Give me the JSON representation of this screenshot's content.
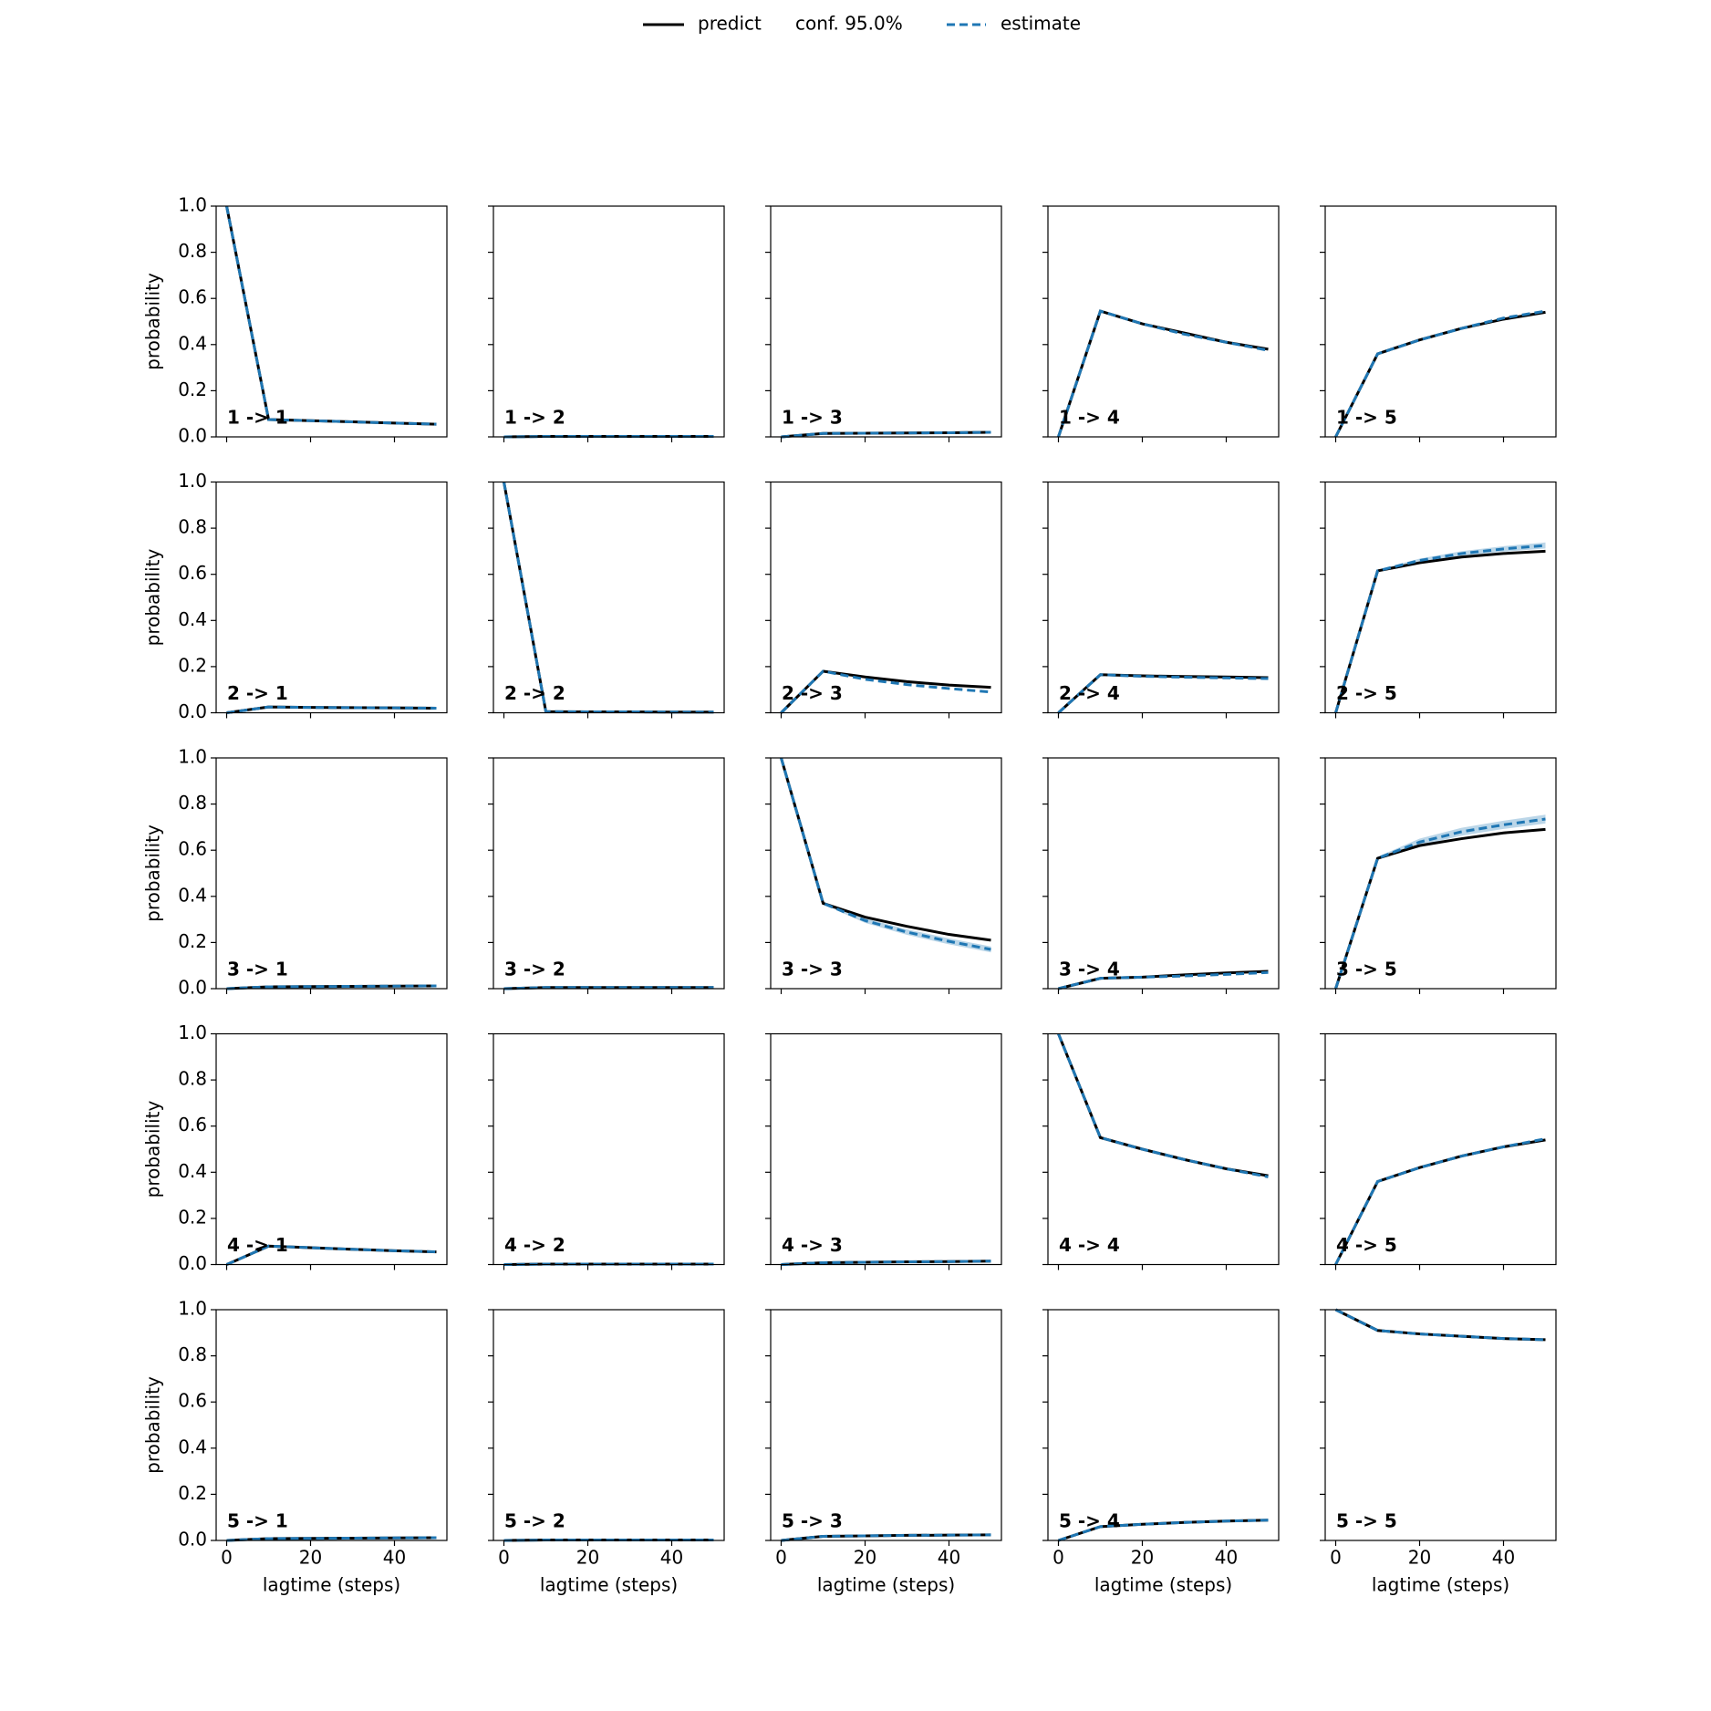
{
  "chart_data": {
    "type": "line",
    "legend": [
      {
        "name": "predict",
        "color": "#000000"
      },
      {
        "name": "conf. 95.0%"
      },
      {
        "name": "estimate",
        "color": "#1f77b4"
      }
    ],
    "xlabel": "lagtime (steps)",
    "ylabel": "probability",
    "x": [
      0,
      10,
      20,
      30,
      40,
      50
    ],
    "xlim": [
      -2.5,
      52.5
    ],
    "ylim": [
      0,
      1
    ],
    "xticks": [
      0,
      20,
      40
    ],
    "yticks": [
      {
        "value": 0,
        "label": "0.0"
      },
      0.2,
      0.4,
      0.6,
      0.8,
      {
        "value": 1,
        "label": "1.0"
      }
    ],
    "panels": [
      {
        "label": "1 -> 1",
        "series": [
          {
            "name": "predict",
            "values": [
              1,
              0.075,
              0.07,
              0.065,
              0.06,
              0.055
            ]
          },
          {
            "name": "estimate",
            "values": [
              1,
              0.075,
              0.07,
              0.065,
              0.06,
              0.055
            ]
          }
        ]
      },
      {
        "label": "1 -> 2",
        "series": [
          {
            "name": "predict",
            "values": [
              0,
              0.002,
              0.002,
              0.002,
              0.002,
              0.002
            ]
          },
          {
            "name": "estimate",
            "values": [
              0,
              0.002,
              0.002,
              0.002,
              0.002,
              0.002
            ]
          }
        ]
      },
      {
        "label": "1 -> 3",
        "series": [
          {
            "name": "predict",
            "values": [
              0,
              0.015,
              0.016,
              0.017,
              0.018,
              0.02
            ]
          },
          {
            "name": "estimate",
            "values": [
              0,
              0.015,
              0.016,
              0.017,
              0.018,
              0.02
            ]
          }
        ]
      },
      {
        "label": "1 -> 4",
        "series": [
          {
            "name": "predict",
            "values": [
              0,
              0.545,
              0.49,
              0.45,
              0.41,
              0.38
            ]
          },
          {
            "name": "estimate",
            "values": [
              0,
              0.545,
              0.49,
              0.445,
              0.41,
              0.375
            ]
          }
        ]
      },
      {
        "label": "1 -> 5",
        "series": [
          {
            "name": "predict",
            "values": [
              0,
              0.36,
              0.42,
              0.47,
              0.51,
              0.54
            ]
          },
          {
            "name": "estimate",
            "values": [
              0,
              0.36,
              0.42,
              0.47,
              0.515,
              0.545
            ]
          }
        ]
      },
      {
        "label": "2 -> 1",
        "series": [
          {
            "name": "predict",
            "values": [
              0,
              0.025,
              0.023,
              0.022,
              0.021,
              0.02
            ]
          },
          {
            "name": "estimate",
            "values": [
              0,
              0.025,
              0.023,
              0.022,
              0.021,
              0.02
            ]
          }
        ]
      },
      {
        "label": "2 -> 2",
        "series": [
          {
            "name": "predict",
            "values": [
              1,
              0.005,
              0.004,
              0.004,
              0.003,
              0.003
            ]
          },
          {
            "name": "estimate",
            "values": [
              1,
              0.005,
              0.004,
              0.004,
              0.003,
              0.003
            ]
          }
        ]
      },
      {
        "label": "2 -> 3",
        "series": [
          {
            "name": "predict",
            "values": [
              0,
              0.18,
              0.155,
              0.135,
              0.12,
              0.11
            ]
          },
          {
            "name": "estimate",
            "values": [
              0,
              0.18,
              0.145,
              0.122,
              0.105,
              0.09
            ]
          }
        ]
      },
      {
        "label": "2 -> 4",
        "series": [
          {
            "name": "predict",
            "values": [
              0,
              0.165,
              0.16,
              0.157,
              0.155,
              0.152
            ]
          },
          {
            "name": "estimate",
            "values": [
              0,
              0.165,
              0.158,
              0.154,
              0.151,
              0.148
            ]
          }
        ]
      },
      {
        "label": "2 -> 5",
        "series": [
          {
            "name": "predict",
            "values": [
              0,
              0.615,
              0.65,
              0.675,
              0.69,
              0.7
            ]
          },
          {
            "name": "estimate",
            "values": [
              0,
              0.615,
              0.66,
              0.69,
              0.71,
              0.725
            ]
          }
        ],
        "conf_lower": [
          0,
          0.61,
          0.652,
          0.68,
          0.698,
          0.712
        ],
        "conf_upper": [
          0,
          0.62,
          0.668,
          0.7,
          0.722,
          0.738
        ]
      },
      {
        "label": "3 -> 1",
        "series": [
          {
            "name": "predict",
            "values": [
              0,
              0.008,
              0.009,
              0.01,
              0.011,
              0.012
            ]
          },
          {
            "name": "estimate",
            "values": [
              0,
              0.008,
              0.009,
              0.01,
              0.011,
              0.012
            ]
          }
        ]
      },
      {
        "label": "3 -> 2",
        "series": [
          {
            "name": "predict",
            "values": [
              0,
              0.005,
              0.005,
              0.005,
              0.005,
              0.005
            ]
          },
          {
            "name": "estimate",
            "values": [
              0,
              0.005,
              0.005,
              0.005,
              0.005,
              0.005
            ]
          }
        ]
      },
      {
        "label": "3 -> 3",
        "series": [
          {
            "name": "predict",
            "values": [
              1,
              0.37,
              0.31,
              0.27,
              0.235,
              0.21
            ]
          },
          {
            "name": "estimate",
            "values": [
              1,
              0.37,
              0.295,
              0.245,
              0.205,
              0.17
            ]
          }
        ],
        "conf_lower": [
          1,
          0.365,
          0.285,
          0.233,
          0.192,
          0.157
        ],
        "conf_upper": [
          1,
          0.375,
          0.305,
          0.257,
          0.218,
          0.183
        ]
      },
      {
        "label": "3 -> 4",
        "series": [
          {
            "name": "predict",
            "values": [
              0,
              0.045,
              0.05,
              0.06,
              0.068,
              0.075
            ]
          },
          {
            "name": "estimate",
            "values": [
              0,
              0.045,
              0.05,
              0.055,
              0.062,
              0.07
            ]
          }
        ]
      },
      {
        "label": "3 -> 5",
        "series": [
          {
            "name": "predict",
            "values": [
              0,
              0.565,
              0.62,
              0.65,
              0.675,
              0.69
            ]
          },
          {
            "name": "estimate",
            "values": [
              0,
              0.565,
              0.635,
              0.68,
              0.71,
              0.735
            ]
          }
        ],
        "conf_lower": [
          0,
          0.558,
          0.62,
          0.663,
          0.692,
          0.716
        ],
        "conf_upper": [
          0,
          0.572,
          0.65,
          0.697,
          0.728,
          0.754
        ]
      },
      {
        "label": "4 -> 1",
        "series": [
          {
            "name": "predict",
            "values": [
              0,
              0.08,
              0.073,
              0.066,
              0.06,
              0.055
            ]
          },
          {
            "name": "estimate",
            "values": [
              0,
              0.08,
              0.073,
              0.066,
              0.06,
              0.055
            ]
          }
        ]
      },
      {
        "label": "4 -> 2",
        "series": [
          {
            "name": "predict",
            "values": [
              0,
              0.002,
              0.002,
              0.002,
              0.002,
              0.002
            ]
          },
          {
            "name": "estimate",
            "values": [
              0,
              0.002,
              0.002,
              0.002,
              0.002,
              0.002
            ]
          }
        ]
      },
      {
        "label": "4 -> 3",
        "series": [
          {
            "name": "predict",
            "values": [
              0,
              0.008,
              0.01,
              0.012,
              0.013,
              0.015
            ]
          },
          {
            "name": "estimate",
            "values": [
              0,
              0.008,
              0.01,
              0.012,
              0.013,
              0.015
            ]
          }
        ]
      },
      {
        "label": "4 -> 4",
        "series": [
          {
            "name": "predict",
            "values": [
              1,
              0.55,
              0.5,
              0.455,
              0.415,
              0.385
            ]
          },
          {
            "name": "estimate",
            "values": [
              1,
              0.55,
              0.5,
              0.455,
              0.415,
              0.38
            ]
          }
        ]
      },
      {
        "label": "4 -> 5",
        "series": [
          {
            "name": "predict",
            "values": [
              0,
              0.36,
              0.42,
              0.47,
              0.51,
              0.54
            ]
          },
          {
            "name": "estimate",
            "values": [
              0,
              0.36,
              0.42,
              0.47,
              0.51,
              0.545
            ]
          }
        ]
      },
      {
        "label": "5 -> 1",
        "series": [
          {
            "name": "predict",
            "values": [
              0,
              0.008,
              0.009,
              0.01,
              0.011,
              0.012
            ]
          },
          {
            "name": "estimate",
            "values": [
              0,
              0.008,
              0.009,
              0.01,
              0.011,
              0.012
            ]
          }
        ]
      },
      {
        "label": "5 -> 2",
        "series": [
          {
            "name": "predict",
            "values": [
              0,
              0.002,
              0.002,
              0.002,
              0.002,
              0.002
            ]
          },
          {
            "name": "estimate",
            "values": [
              0,
              0.002,
              0.002,
              0.002,
              0.002,
              0.002
            ]
          }
        ]
      },
      {
        "label": "5 -> 3",
        "series": [
          {
            "name": "predict",
            "values": [
              0,
              0.018,
              0.02,
              0.022,
              0.023,
              0.024
            ]
          },
          {
            "name": "estimate",
            "values": [
              0,
              0.018,
              0.02,
              0.022,
              0.023,
              0.024
            ]
          }
        ]
      },
      {
        "label": "5 -> 4",
        "series": [
          {
            "name": "predict",
            "values": [
              0,
              0.06,
              0.07,
              0.078,
              0.084,
              0.088
            ]
          },
          {
            "name": "estimate",
            "values": [
              0,
              0.06,
              0.07,
              0.078,
              0.084,
              0.088
            ]
          }
        ]
      },
      {
        "label": "5 -> 5",
        "series": [
          {
            "name": "predict",
            "values": [
              1,
              0.91,
              0.895,
              0.885,
              0.875,
              0.87
            ]
          },
          {
            "name": "estimate",
            "values": [
              1,
              0.91,
              0.895,
              0.885,
              0.875,
              0.87
            ]
          }
        ]
      }
    ]
  }
}
